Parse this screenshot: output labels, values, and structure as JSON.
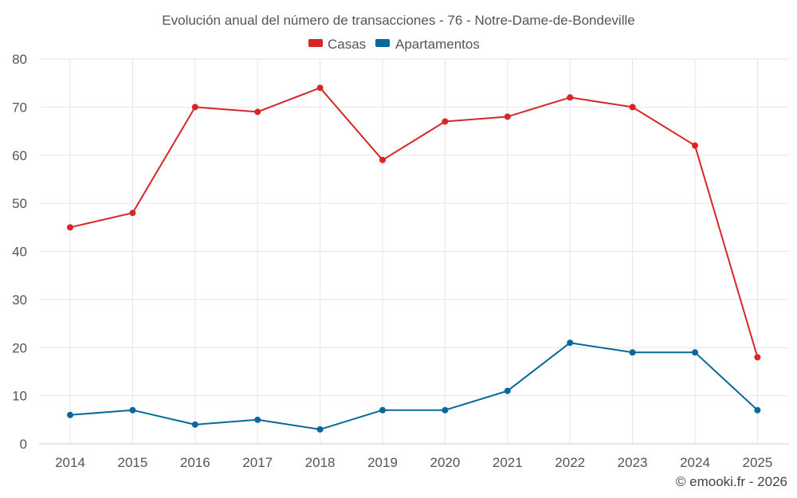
{
  "chart_data": {
    "type": "line",
    "title": "Evolución anual del número de transacciones - 76 - Notre-Dame-de-Bondeville",
    "categories": [
      "2014",
      "2015",
      "2016",
      "2017",
      "2018",
      "2019",
      "2020",
      "2021",
      "2022",
      "2023",
      "2024",
      "2025"
    ],
    "series": [
      {
        "name": "Casas",
        "color": "#d62728",
        "values": [
          45,
          48,
          70,
          69,
          74,
          59,
          67,
          68,
          72,
          70,
          62,
          18
        ]
      },
      {
        "name": "Apartamentos",
        "color": "#08689c",
        "values": [
          6,
          7,
          4,
          5,
          3,
          7,
          7,
          11,
          21,
          19,
          19,
          7
        ]
      }
    ],
    "ylim": [
      0,
      80
    ],
    "yticks": [
      "0",
      "10",
      "20",
      "30",
      "40",
      "50",
      "60",
      "70",
      "80"
    ],
    "xlabel": "",
    "ylabel": "",
    "grid": true,
    "legend_position": "top-center"
  },
  "credit": "© emooki.fr - 2026"
}
